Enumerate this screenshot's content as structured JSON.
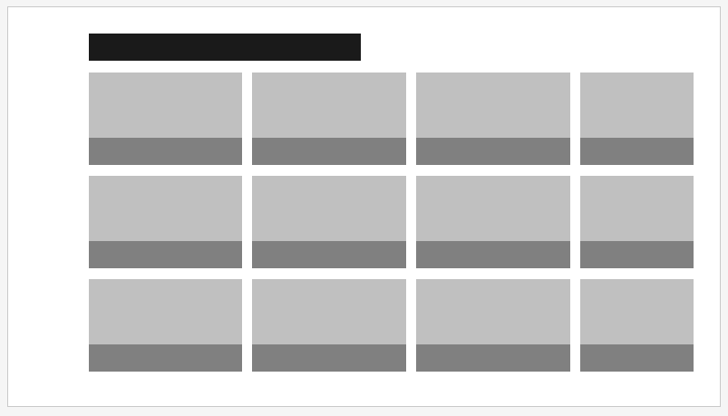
{
  "colors": {
    "page_background": "#f5f5f5",
    "window_background": "#ffffff",
    "window_border": "#c9c9c9",
    "title_block": "#1a1a1a",
    "tile_thumbnail": "#c0c0c0",
    "tile_caption": "#808080"
  },
  "header": {
    "title": ""
  },
  "tiles": [
    {
      "caption": ""
    },
    {
      "caption": ""
    },
    {
      "caption": ""
    },
    {
      "caption": ""
    },
    {
      "caption": ""
    },
    {
      "caption": ""
    },
    {
      "caption": ""
    },
    {
      "caption": ""
    },
    {
      "caption": ""
    },
    {
      "caption": ""
    },
    {
      "caption": ""
    },
    {
      "caption": ""
    }
  ]
}
